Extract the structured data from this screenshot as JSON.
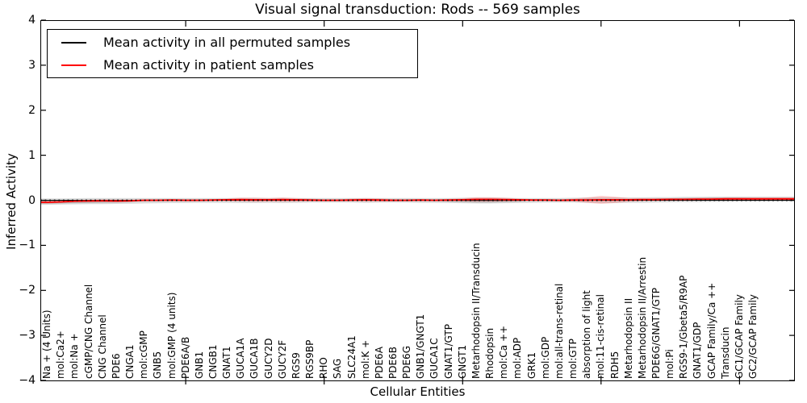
{
  "legend": {
    "items": [
      {
        "label": "Mean activity in all permuted samples",
        "color": "#000000"
      },
      {
        "label": "Mean activity in patient samples",
        "color": "#ff0000"
      }
    ]
  },
  "chart_data": {
    "type": "line",
    "title": "Visual signal transduction: Rods -- 569 samples",
    "xlabel": "Cellular Entities",
    "ylabel": "Inferred Activity",
    "xlim": [
      -0.5,
      54
    ],
    "ylim": [
      -4,
      4
    ],
    "yticks": [
      4,
      3,
      2,
      1,
      0,
      -1,
      -2,
      -3,
      -4
    ],
    "x_major_ticks": [
      10,
      20,
      30,
      40,
      50
    ],
    "grid": false,
    "legend_position": "upper left",
    "colors": {
      "permuted_line": "#000000",
      "patient_line": "#ff0000",
      "zero_line": "#000000",
      "envelope": "#bcbcbc",
      "envelope_dark": "#8f8f8f"
    },
    "categories": [
      "Na + (4 Units)",
      "mol:Ca2+",
      "mol:Na +",
      "cGMP/CNG Channel",
      "CNG Channel",
      "PDE6",
      "CNGA1",
      "mol:cGMP",
      "GNB5",
      "mol:GMP (4 units)",
      "PDE6A/B",
      "GNB1",
      "CNGB1",
      "GNAT1",
      "GUCA1A",
      "GUCA1B",
      "GUCY2D",
      "GUCY2F",
      "RGS9",
      "RGS9BP",
      "RHO",
      "SAG",
      "SLC24A1",
      "mol:K +",
      "PDE6A",
      "PDE6B",
      "PDE6G",
      "GNB1/GNGT1",
      "GUCA1C",
      "GNAT1/GTP",
      "GNGT1",
      "Metarhodopsin II/Transducin",
      "Rhodopsin",
      "mol:Ca ++",
      "mol:ADP",
      "GRK1",
      "mol:GDP",
      "mol:all-trans-retinal",
      "mol:GTP",
      "absorption of light",
      "mol:11-cis-retinal",
      "RDH5",
      "Metarhodopsin II",
      "Metarhodopsin II/Arrestin",
      "PDE6G/GNAT1/GTP",
      "mol:Pi",
      "RGS9-1/Gbeta5/R9AP",
      "GNAT1/GDP",
      "GCAP Family/Ca ++",
      "Transducin",
      "GC1/GCAP Family",
      "GC2/GCAP Family"
    ],
    "series": [
      {
        "name": "Mean activity in all permuted samples",
        "color": "#000000",
        "values": [
          0,
          0,
          0,
          0,
          0,
          0,
          0,
          0,
          0,
          0,
          0,
          0,
          0,
          0,
          0,
          0,
          0,
          0,
          0,
          0,
          0,
          0,
          0,
          0,
          0,
          0,
          0,
          0,
          0,
          0,
          0,
          0,
          0,
          0,
          0,
          0,
          0,
          0,
          0,
          0,
          0,
          0,
          0,
          0,
          0,
          0,
          0,
          0,
          0,
          0,
          0,
          0
        ]
      },
      {
        "name": "Mean activity in patient samples",
        "color": "#ff0000",
        "values": [
          -0.045,
          -0.035,
          -0.02,
          -0.015,
          -0.01,
          -0.015,
          -0.01,
          0,
          0,
          0.005,
          0,
          0,
          0.005,
          0.01,
          0.015,
          0.01,
          0.01,
          0.015,
          0.01,
          0.005,
          0,
          0,
          0.005,
          0.01,
          0.005,
          0,
          0,
          0.005,
          0,
          0.005,
          0.01,
          0.02,
          0.02,
          0.015,
          0.01,
          0.005,
          0.005,
          0,
          0.005,
          0.005,
          0.01,
          0.01,
          0.01,
          0.015,
          0.015,
          0.02,
          0.02,
          0.025,
          0.025,
          0.03,
          0.03,
          0.03
        ]
      }
    ],
    "permuted_envelope": {
      "upper": [
        0.04,
        0.04,
        0.045,
        0.05,
        0.05,
        0.05,
        0.05,
        0.05,
        0.05,
        0.05,
        0.05,
        0.05,
        0.05,
        0.05,
        0.055,
        0.055,
        0.05,
        0.055,
        0.05,
        0.05,
        0.05,
        0.05,
        0.05,
        0.05,
        0.05,
        0.05,
        0.05,
        0.05,
        0.05,
        0.05,
        0.055,
        0.06,
        0.06,
        0.055,
        0.05,
        0.05,
        0.05,
        0.05,
        0.055,
        0.06,
        0.065,
        0.065,
        0.06,
        0.065,
        0.07,
        0.07,
        0.075,
        0.075,
        0.08,
        0.08,
        0.08,
        0.08
      ],
      "lower": [
        -0.1,
        -0.095,
        -0.09,
        -0.085,
        -0.085,
        -0.08,
        -0.075,
        -0.07,
        -0.065,
        -0.06,
        -0.06,
        -0.055,
        -0.055,
        -0.055,
        -0.06,
        -0.06,
        -0.055,
        -0.06,
        -0.055,
        -0.05,
        -0.05,
        -0.05,
        -0.05,
        -0.055,
        -0.05,
        -0.05,
        -0.05,
        -0.055,
        -0.055,
        -0.06,
        -0.065,
        -0.07,
        -0.07,
        -0.065,
        -0.06,
        -0.055,
        -0.05,
        -0.05,
        -0.05,
        -0.055,
        -0.06,
        -0.06,
        -0.055,
        -0.055,
        -0.05,
        -0.045,
        -0.04,
        -0.04,
        -0.035,
        -0.035,
        -0.03,
        -0.03
      ]
    },
    "permuted_envelope_dark": {
      "upper": [
        -0.01,
        -0.005,
        0,
        0,
        0,
        0,
        -0.005,
        0,
        0,
        0,
        0,
        0,
        0,
        0,
        0,
        0,
        0,
        0,
        0,
        0,
        0,
        0,
        0,
        0,
        0,
        0,
        0,
        0,
        0,
        0,
        0,
        0.01,
        0.01,
        0,
        0,
        0,
        0,
        0,
        0,
        0,
        0,
        0,
        0,
        0,
        0.04,
        0.045,
        0.05,
        0.05,
        0.055,
        0.055,
        0.055,
        0.05
      ],
      "lower": [
        -0.075,
        -0.07,
        -0.065,
        -0.06,
        -0.055,
        -0.05,
        -0.04,
        0,
        0,
        0,
        0,
        0,
        0,
        0,
        0,
        0,
        0,
        0,
        0,
        0,
        0,
        0,
        0,
        0,
        0,
        0,
        0,
        0,
        0,
        -0.03,
        -0.04,
        -0.05,
        -0.05,
        -0.04,
        -0.03,
        0,
        0,
        0,
        0,
        0,
        0,
        0,
        0,
        0,
        0.005,
        0.005,
        0.01,
        0.01,
        0.01,
        0.01,
        0.015,
        0.015
      ]
    },
    "patient_spread_halfwidth": [
      0.025,
      0.02,
      0.02,
      0.02,
      0.03,
      0.03,
      0.025,
      0.02,
      0.02,
      0.02,
      0.02,
      0.02,
      0.02,
      0.03,
      0.04,
      0.045,
      0.04,
      0.045,
      0.04,
      0.03,
      0.02,
      0.02,
      0.03,
      0.04,
      0.035,
      0.025,
      0.02,
      0.02,
      0.02,
      0.025,
      0.035,
      0.05,
      0.05,
      0.04,
      0.03,
      0.02,
      0.02,
      0.02,
      0.03,
      0.06,
      0.09,
      0.07,
      0.04,
      0.03,
      0.025,
      0.025,
      0.025,
      0.03,
      0.03,
      0.035,
      0.035,
      0.035
    ],
    "zero_line": {
      "y": 0,
      "style": "dotted",
      "color": "#000000"
    }
  }
}
